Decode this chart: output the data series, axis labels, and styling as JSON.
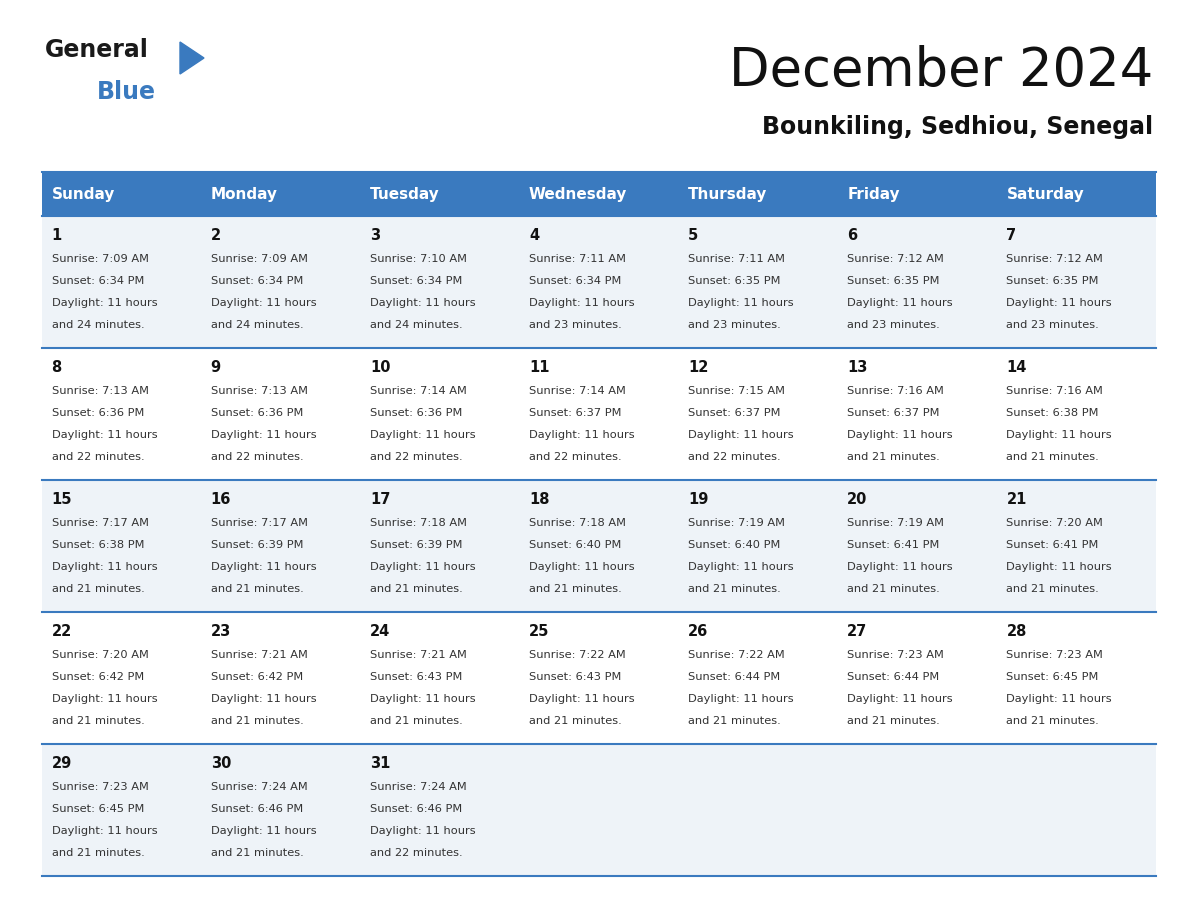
{
  "title": "December 2024",
  "subtitle": "Bounkiling, Sedhiou, Senegal",
  "header_bg_color": "#3a7abf",
  "header_text_color": "#ffffff",
  "days_of_week": [
    "Sunday",
    "Monday",
    "Tuesday",
    "Wednesday",
    "Thursday",
    "Friday",
    "Saturday"
  ],
  "cell_border_color": "#3a7abf",
  "calendar": [
    [
      {
        "day": 1,
        "sunrise": "7:09 AM",
        "sunset": "6:34 PM",
        "daylight": "11 hours and 24 minutes."
      },
      {
        "day": 2,
        "sunrise": "7:09 AM",
        "sunset": "6:34 PM",
        "daylight": "11 hours and 24 minutes."
      },
      {
        "day": 3,
        "sunrise": "7:10 AM",
        "sunset": "6:34 PM",
        "daylight": "11 hours and 24 minutes."
      },
      {
        "day": 4,
        "sunrise": "7:11 AM",
        "sunset": "6:34 PM",
        "daylight": "11 hours and 23 minutes."
      },
      {
        "day": 5,
        "sunrise": "7:11 AM",
        "sunset": "6:35 PM",
        "daylight": "11 hours and 23 minutes."
      },
      {
        "day": 6,
        "sunrise": "7:12 AM",
        "sunset": "6:35 PM",
        "daylight": "11 hours and 23 minutes."
      },
      {
        "day": 7,
        "sunrise": "7:12 AM",
        "sunset": "6:35 PM",
        "daylight": "11 hours and 23 minutes."
      }
    ],
    [
      {
        "day": 8,
        "sunrise": "7:13 AM",
        "sunset": "6:36 PM",
        "daylight": "11 hours and 22 minutes."
      },
      {
        "day": 9,
        "sunrise": "7:13 AM",
        "sunset": "6:36 PM",
        "daylight": "11 hours and 22 minutes."
      },
      {
        "day": 10,
        "sunrise": "7:14 AM",
        "sunset": "6:36 PM",
        "daylight": "11 hours and 22 minutes."
      },
      {
        "day": 11,
        "sunrise": "7:14 AM",
        "sunset": "6:37 PM",
        "daylight": "11 hours and 22 minutes."
      },
      {
        "day": 12,
        "sunrise": "7:15 AM",
        "sunset": "6:37 PM",
        "daylight": "11 hours and 22 minutes."
      },
      {
        "day": 13,
        "sunrise": "7:16 AM",
        "sunset": "6:37 PM",
        "daylight": "11 hours and 21 minutes."
      },
      {
        "day": 14,
        "sunrise": "7:16 AM",
        "sunset": "6:38 PM",
        "daylight": "11 hours and 21 minutes."
      }
    ],
    [
      {
        "day": 15,
        "sunrise": "7:17 AM",
        "sunset": "6:38 PM",
        "daylight": "11 hours and 21 minutes."
      },
      {
        "day": 16,
        "sunrise": "7:17 AM",
        "sunset": "6:39 PM",
        "daylight": "11 hours and 21 minutes."
      },
      {
        "day": 17,
        "sunrise": "7:18 AM",
        "sunset": "6:39 PM",
        "daylight": "11 hours and 21 minutes."
      },
      {
        "day": 18,
        "sunrise": "7:18 AM",
        "sunset": "6:40 PM",
        "daylight": "11 hours and 21 minutes."
      },
      {
        "day": 19,
        "sunrise": "7:19 AM",
        "sunset": "6:40 PM",
        "daylight": "11 hours and 21 minutes."
      },
      {
        "day": 20,
        "sunrise": "7:19 AM",
        "sunset": "6:41 PM",
        "daylight": "11 hours and 21 minutes."
      },
      {
        "day": 21,
        "sunrise": "7:20 AM",
        "sunset": "6:41 PM",
        "daylight": "11 hours and 21 minutes."
      }
    ],
    [
      {
        "day": 22,
        "sunrise": "7:20 AM",
        "sunset": "6:42 PM",
        "daylight": "11 hours and 21 minutes."
      },
      {
        "day": 23,
        "sunrise": "7:21 AM",
        "sunset": "6:42 PM",
        "daylight": "11 hours and 21 minutes."
      },
      {
        "day": 24,
        "sunrise": "7:21 AM",
        "sunset": "6:43 PM",
        "daylight": "11 hours and 21 minutes."
      },
      {
        "day": 25,
        "sunrise": "7:22 AM",
        "sunset": "6:43 PM",
        "daylight": "11 hours and 21 minutes."
      },
      {
        "day": 26,
        "sunrise": "7:22 AM",
        "sunset": "6:44 PM",
        "daylight": "11 hours and 21 minutes."
      },
      {
        "day": 27,
        "sunrise": "7:23 AM",
        "sunset": "6:44 PM",
        "daylight": "11 hours and 21 minutes."
      },
      {
        "day": 28,
        "sunrise": "7:23 AM",
        "sunset": "6:45 PM",
        "daylight": "11 hours and 21 minutes."
      }
    ],
    [
      {
        "day": 29,
        "sunrise": "7:23 AM",
        "sunset": "6:45 PM",
        "daylight": "11 hours and 21 minutes."
      },
      {
        "day": 30,
        "sunrise": "7:24 AM",
        "sunset": "6:46 PM",
        "daylight": "11 hours and 21 minutes."
      },
      {
        "day": 31,
        "sunrise": "7:24 AM",
        "sunset": "6:46 PM",
        "daylight": "11 hours and 22 minutes."
      },
      null,
      null,
      null,
      null
    ]
  ]
}
